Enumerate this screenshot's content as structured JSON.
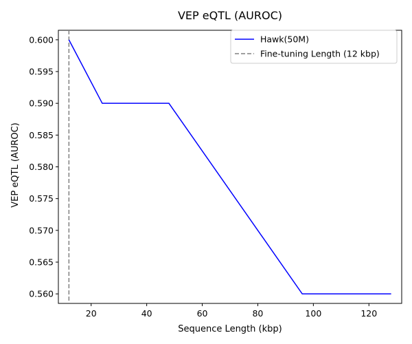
{
  "chart_data": {
    "type": "line",
    "title": "VEP eQTL (AUROC)",
    "xlabel": "Sequence Length (kbp)",
    "ylabel": "VEP eQTL (AUROC)",
    "xlim": [
      8.2,
      131.8
    ],
    "ylim": [
      0.5585,
      0.6015
    ],
    "x_ticks": [
      20,
      40,
      60,
      80,
      100,
      120
    ],
    "y_ticks": [
      0.56,
      0.565,
      0.57,
      0.575,
      0.58,
      0.585,
      0.59,
      0.595,
      0.6
    ],
    "y_tick_labels": [
      "0.560",
      "0.565",
      "0.570",
      "0.575",
      "0.580",
      "0.585",
      "0.590",
      "0.595",
      "0.600"
    ],
    "grid": false,
    "legend_position": "top-right",
    "series": [
      {
        "name": "Hawk(50M)",
        "color": "#0000ff",
        "x": [
          12,
          24,
          48,
          96,
          128
        ],
        "y": [
          0.6,
          0.59,
          0.59,
          0.56,
          0.56
        ]
      }
    ],
    "reference_lines": [
      {
        "name": "Fine-tuning Length (12 kbp)",
        "orientation": "vertical",
        "x": 12,
        "color": "#808080",
        "style": "dashed"
      }
    ]
  }
}
